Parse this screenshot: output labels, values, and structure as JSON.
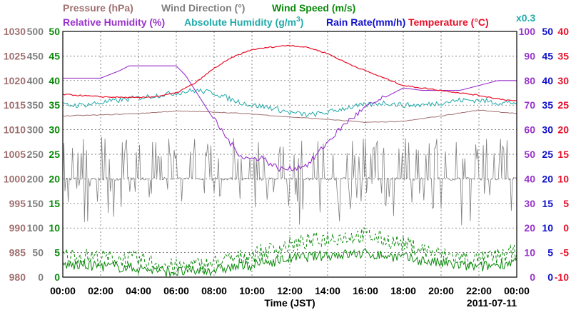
{
  "chart_data": {
    "type": "line",
    "date": "2011-07-11",
    "xlabel": "Time (JST)",
    "x_ticks": [
      "00:00",
      "02:00",
      "04:00",
      "06:00",
      "08:00",
      "10:00",
      "12:00",
      "14:00",
      "16:00",
      "18:00",
      "20:00",
      "22:00",
      "00:00"
    ],
    "grid": true,
    "axes": {
      "pressure": {
        "label": "Pressure (hPa)",
        "range": [
          980,
          1030
        ],
        "ticks": [
          980,
          985,
          990,
          995,
          1000,
          1005,
          1010,
          1015,
          1020,
          1025,
          1030
        ],
        "color": "#a07070"
      },
      "wind_dir": {
        "label": "Wind Direction (°)",
        "range": [
          0,
          500
        ],
        "ticks": [
          0,
          50,
          100,
          150,
          200,
          250,
          300,
          350,
          400,
          450,
          500
        ],
        "color": "#808080"
      },
      "wind_speed": {
        "label": "Wind Speed (m/s)",
        "range": [
          0,
          50
        ],
        "ticks": [
          0,
          5,
          10,
          15,
          20,
          25,
          30,
          35,
          40,
          45,
          50
        ],
        "color": "#0a8a0a"
      },
      "rel_hum": {
        "label": "Relative Humidity (%)",
        "range": [
          0,
          100
        ],
        "ticks": [
          0,
          10,
          20,
          30,
          40,
          50,
          60,
          70,
          80,
          90,
          100
        ],
        "color": "#9933cc"
      },
      "rain": {
        "label": "Rain Rate(mm/h)",
        "range": [
          0,
          50
        ],
        "ticks": [
          0,
          5,
          10,
          15,
          20,
          25,
          30,
          35,
          40,
          45,
          50
        ],
        "color": "#1111cc"
      },
      "temperature": {
        "label": "Temperature (°C)",
        "range": [
          -10,
          40
        ],
        "ticks": [
          -10,
          -5,
          0,
          5,
          10,
          15,
          20,
          25,
          30,
          35,
          40
        ],
        "color": "#e8102a"
      }
    },
    "abs_hum": {
      "label_main": "Absolute Humidity (g/m",
      "label_sup": "3",
      "label_end": ")",
      "scale_note": "x0.3",
      "color": "#22aaaa"
    },
    "series": [
      {
        "name": "Temperature (°C)",
        "axis": "temperature",
        "x": [
          0,
          2,
          4,
          5,
          6,
          7,
          8,
          9,
          10,
          11,
          12,
          13,
          14,
          15,
          16,
          17,
          18,
          19,
          20,
          21,
          22,
          23,
          24
        ],
        "y": [
          27.2,
          26.7,
          26.5,
          26.8,
          27.5,
          29.5,
          32.5,
          34.8,
          36.3,
          36.8,
          37.2,
          36.7,
          35.5,
          33.6,
          32.0,
          30.5,
          29.0,
          28.5,
          28.0,
          27.5,
          27.0,
          26.3,
          25.8
        ]
      },
      {
        "name": "Relative Humidity (%)",
        "axis": "rel_hum",
        "x": [
          0,
          1,
          2,
          3,
          3.5,
          4,
          5,
          6,
          6.5,
          7,
          8,
          9,
          9.5,
          10,
          10.5,
          11,
          11.5,
          12,
          12.5,
          13,
          14,
          15,
          16,
          17,
          18,
          19,
          20,
          21,
          22,
          23,
          24
        ],
        "y": [
          81,
          81,
          81,
          84,
          86,
          86,
          86,
          86,
          82,
          76,
          64,
          53,
          49,
          48,
          49,
          46,
          44,
          44,
          45,
          46,
          55,
          63,
          69,
          73,
          77,
          76,
          76,
          76,
          78,
          80,
          80
        ]
      },
      {
        "name": "Absolute Humidity",
        "axis": "abs_hum_scaled",
        "x": [
          0,
          1,
          2,
          3,
          4,
          5,
          6,
          7,
          8,
          9,
          10,
          11,
          12,
          13,
          14,
          15,
          16,
          17,
          18,
          19,
          20,
          21,
          22,
          23,
          24
        ],
        "y": [
          70,
          70,
          71,
          72,
          73,
          74,
          75,
          76,
          75,
          72,
          70,
          69,
          67,
          66,
          67,
          69,
          70,
          71,
          70,
          70,
          71,
          72,
          72,
          71,
          71
        ]
      },
      {
        "name": "Pressure (hPa)",
        "axis": "pressure",
        "x": [
          0,
          2,
          4,
          6,
          8,
          10,
          12,
          14,
          16,
          18,
          20,
          22,
          24
        ],
        "y": [
          1012.8,
          1013.0,
          1013.3,
          1013.8,
          1013.6,
          1013.2,
          1012.6,
          1012.1,
          1011.5,
          1011.7,
          1012.8,
          1014.0,
          1013.3
        ]
      },
      {
        "name": "Wind Direction (°)",
        "axis": "wind_dir",
        "baseline": 200,
        "spike_count": 160,
        "note": "noisy series around 200° with spikes between 100° and 290°"
      },
      {
        "name": "Wind Speed (m/s)",
        "axis": "wind_speed",
        "note": "solid (mean) and dashed (gust) traces",
        "x": [
          0,
          2,
          4,
          6,
          8,
          10,
          12,
          14,
          16,
          18,
          20,
          22,
          24
        ],
        "mean": [
          2.5,
          2.3,
          1.8,
          1.0,
          1.5,
          2.5,
          3.8,
          4.5,
          4.8,
          4.0,
          2.8,
          2.0,
          3.2
        ],
        "gust": [
          4.5,
          4.0,
          3.5,
          2.0,
          2.8,
          4.5,
          6.5,
          8.0,
          8.5,
          6.8,
          4.5,
          3.5,
          5.0
        ]
      },
      {
        "name": "Rain Rate(mm/h)",
        "axis": "rain",
        "x": [
          0,
          24
        ],
        "y": [
          0,
          0
        ]
      }
    ]
  }
}
